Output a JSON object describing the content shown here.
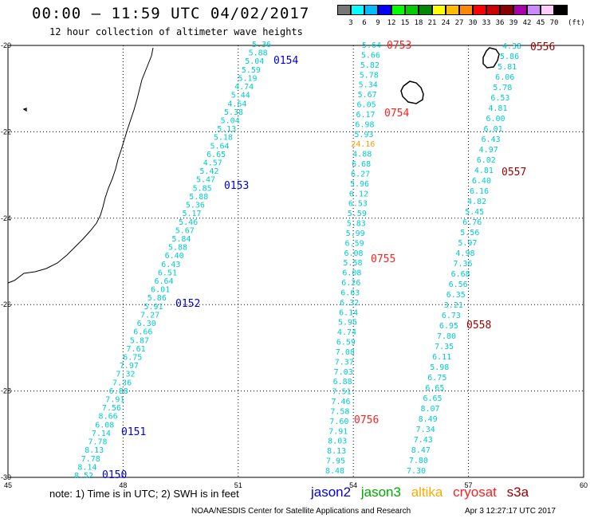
{
  "title": "00:00 – 11:59 UTC 04/02/2017",
  "subtitle": "12 hour collection of altimeter wave heights",
  "scale": {
    "unit": "(ft)",
    "colors": [
      "#777777",
      "#00ffff",
      "#00bbff",
      "#0000ff",
      "#00ff00",
      "#00cc00",
      "#008800",
      "#ffff00",
      "#ffbb00",
      "#ff8800",
      "#ff0000",
      "#cc0000",
      "#880000",
      "#aa00aa",
      "#cc88ff",
      "#ffccff",
      "#000000"
    ],
    "labels": [
      "3",
      "6",
      "9",
      "12",
      "15",
      "18",
      "21",
      "24",
      "27",
      "30",
      "33",
      "36",
      "39",
      "42",
      "45",
      "70"
    ]
  },
  "axes": {
    "lon_ticks": [
      "45",
      "48",
      "51",
      "54",
      "57",
      "60"
    ],
    "lat_ticks": [
      "-20",
      "-22",
      "-24",
      "-26",
      "-28",
      "-30"
    ]
  },
  "passes": [
    {
      "label": "0154",
      "sat": "jason2"
    },
    {
      "label": "0153",
      "sat": "jason2"
    },
    {
      "label": "0152",
      "sat": "jason2"
    },
    {
      "label": "0151",
      "sat": "jason2"
    },
    {
      "label": "0150",
      "sat": "jason2"
    },
    {
      "label": "0753",
      "sat": "cryosat"
    },
    {
      "label": "0754",
      "sat": "cryosat"
    },
    {
      "label": "0755",
      "sat": "cryosat"
    },
    {
      "label": "0756",
      "sat": "cryosat"
    },
    {
      "label": "0556",
      "sat": "s3a"
    },
    {
      "label": "0557",
      "sat": "s3a"
    },
    {
      "label": "0558",
      "sat": "s3a"
    }
  ],
  "tracks": {
    "track1": [
      "5.36",
      "5.88",
      "5.04",
      "5.59",
      "5.19",
      "4.74",
      "5.44",
      "4.64",
      "5.38",
      "5.04",
      "5.13",
      "5.18",
      "5.64",
      "6.65",
      "4.57",
      "5.42",
      "5.47",
      "5.85",
      "5.88",
      "5.36",
      "5.17",
      "5.46",
      "5.67",
      "5.84",
      "5.88",
      "6.40",
      "6.43",
      "6.51",
      "6.64",
      "6.01",
      "5.86",
      "5.91",
      "7.27",
      "6.30",
      "6.66",
      "5.87",
      "7.61",
      "6.75",
      "7.97",
      "7.32",
      "7.36",
      "6.88",
      "7.91",
      "7.56",
      "8.66",
      "6.08",
      "7.14",
      "7.78",
      "8.13",
      "7.78",
      "8.14",
      "8.52"
    ],
    "track2": [
      "5.64",
      "5.66",
      "5.82",
      "5.78",
      "5.34",
      "5.67",
      "6.05",
      "6.17",
      "6.98",
      "5.93",
      "24.16",
      "4.88",
      "6.68",
      "6.27",
      "5.96",
      "6.12",
      "6.53",
      "5.59",
      "5.83",
      "5.99",
      "6.59",
      "6.08",
      "5.58",
      "6.08",
      "6.26",
      "6.63",
      "6.32",
      "6.14",
      "5.95",
      "4.74",
      "6.59",
      "7.08",
      "7.37",
      "7.03",
      "6.88",
      "7.51",
      "7.46",
      "7.58",
      "7.60",
      "7.91",
      "8.03",
      "8.13",
      "7.95",
      "8.48"
    ],
    "track3": [
      "4.38",
      "5.86",
      "5.81",
      "6.06",
      "5.78",
      "6.53",
      "4.81",
      "6.00",
      "6.01",
      "6.43",
      "4.97",
      "6.02",
      "4.81",
      "6.40",
      "6.16",
      "4.82",
      "5.45",
      "6.76",
      "5.56",
      "5.97",
      "4.98",
      "7.36",
      "6.68",
      "6.56",
      "6.35",
      "3.21",
      "6.73",
      "6.95",
      "7.80",
      "7.35",
      "6.11",
      "5.98",
      "6.75",
      "6.65",
      "6.65",
      "8.07",
      "8.49",
      "7.34",
      "7.43",
      "8.47",
      "7.80",
      "7.30"
    ]
  },
  "legend": [
    "jason2",
    "jason3",
    "altika",
    "cryosat",
    "s3a"
  ],
  "note": "note: 1) Time is in UTC; 2) SWH is in feet",
  "credit": "NOAA/NESDIS Center for Satellite Applications and Research",
  "stamp": "Apr  3 12:27:17 UTC 2017"
}
